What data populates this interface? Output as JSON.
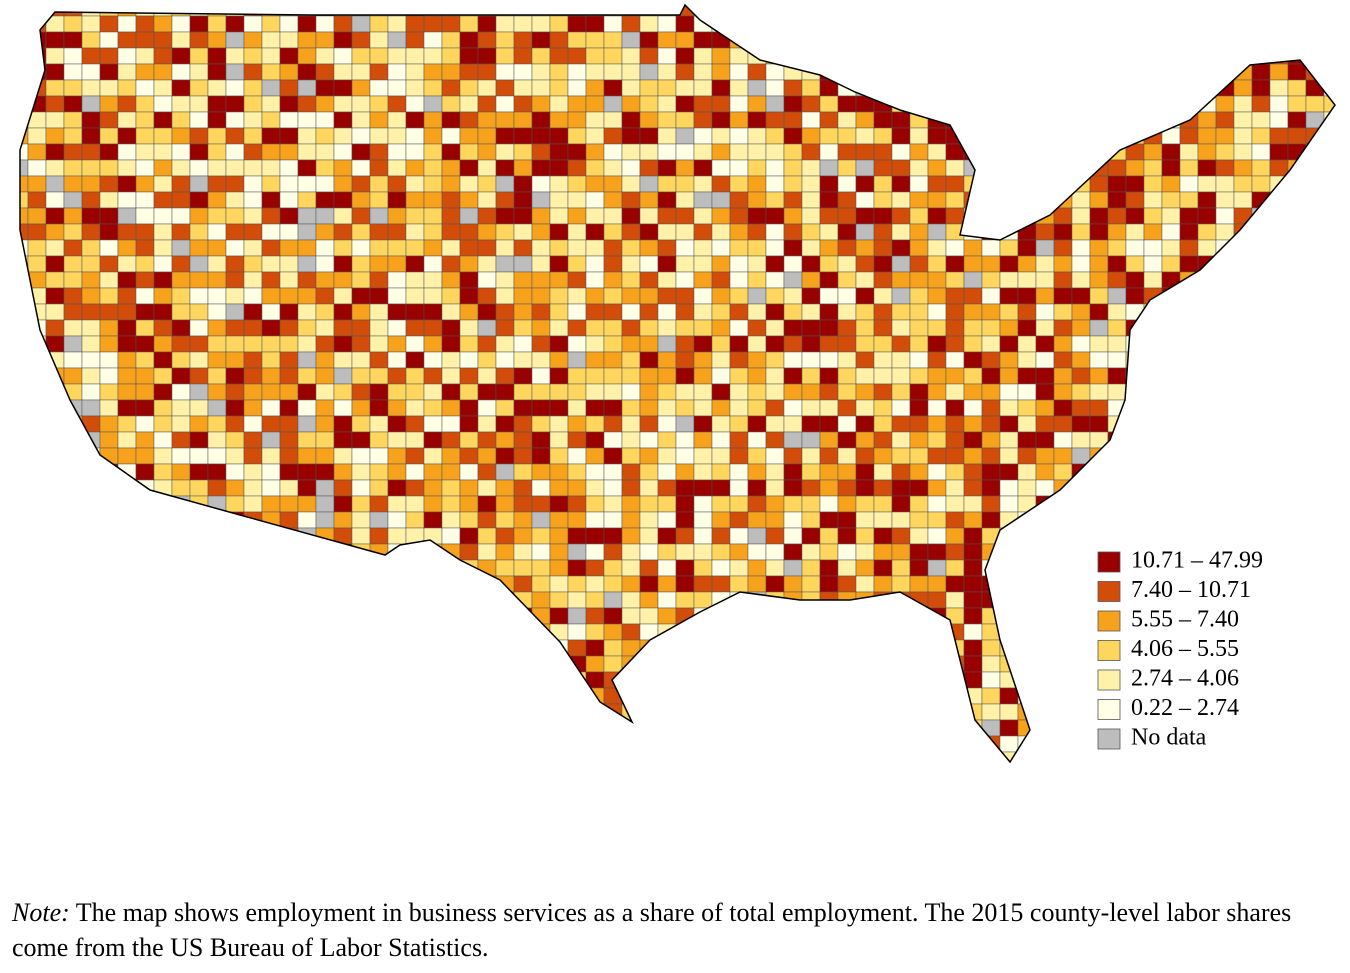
{
  "map": {
    "legend": [
      {
        "label": "10.71 – 47.99",
        "color": "#990000"
      },
      {
        "label": "7.40 – 10.71",
        "color": "#d24d0a"
      },
      {
        "label": "5.55 – 7.40",
        "color": "#f7a21c"
      },
      {
        "label": "4.06 – 5.55",
        "color": "#fed65e"
      },
      {
        "label": "2.74 – 4.06",
        "color": "#fff2a8"
      },
      {
        "label": "0.22 – 2.74",
        "color": "#ffffe6"
      },
      {
        "label": "No data",
        "color": "#bdbdbd"
      }
    ]
  },
  "note": {
    "label": "Note:",
    "text": " The map shows employment in business services as a share of total employment. The 2015 county-level labor shares come from the US Bureau of Labor Statistics."
  }
}
